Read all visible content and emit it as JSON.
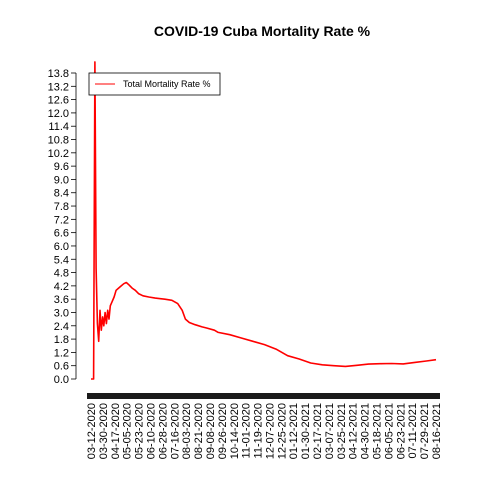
{
  "chart_data": {
    "type": "line",
    "title": "COVID-19 Cuba Mortality Rate %",
    "xlabel": "",
    "ylabel": "",
    "legend": {
      "placement": "top-left"
    },
    "grid": false,
    "y_ticks": [
      "0.0",
      "0.6",
      "1.2",
      "1.8",
      "2.4",
      "3.0",
      "3.6",
      "4.2",
      "4.8",
      "5.4",
      "6.0",
      "6.6",
      "7.2",
      "7.8",
      "8.4",
      "9.0",
      "9.6",
      "10.2",
      "10.8",
      "11.4",
      "12.0",
      "12.6",
      "13.2",
      "13.8"
    ],
    "ylim": [
      0.0,
      13.8
    ],
    "x_tick_labels": [
      "03-12-2020",
      "03-30-2020",
      "04-17-2020",
      "05-05-2020",
      "05-23-2020",
      "06-10-2020",
      "06-28-2020",
      "07-16-2020",
      "08-03-2020",
      "08-21-2020",
      "09-08-2020",
      "09-26-2020",
      "10-14-2020",
      "11-01-2020",
      "11-19-2020",
      "12-07-2020",
      "12-25-2020",
      "01-12-2021",
      "01-30-2021",
      "02-17-2021",
      "03-07-2021",
      "03-25-2021",
      "04-12-2021",
      "04-30-2021",
      "05-18-2021",
      "06-05-2021",
      "06-23-2021",
      "07-11-2021",
      "07-29-2021",
      "08-16-2021"
    ],
    "series": [
      {
        "name": "Total Mortality Rate %",
        "color": "#ff0000",
        "points": [
          [
            "03-12-2020",
            0.0
          ],
          [
            "03-16-2020",
            0.0
          ],
          [
            "03-18-2020",
            14.3
          ],
          [
            "03-20-2020",
            5.0
          ],
          [
            "03-22-2020",
            2.5
          ],
          [
            "03-24-2020",
            1.7
          ],
          [
            "03-26-2020",
            3.1
          ],
          [
            "03-28-2020",
            2.2
          ],
          [
            "03-30-2020",
            2.8
          ],
          [
            "04-01-2020",
            2.4
          ],
          [
            "04-03-2020",
            3.0
          ],
          [
            "04-05-2020",
            2.5
          ],
          [
            "04-07-2020",
            3.1
          ],
          [
            "04-09-2020",
            2.7
          ],
          [
            "04-11-2020",
            3.3
          ],
          [
            "04-14-2020",
            3.5
          ],
          [
            "04-17-2020",
            3.7
          ],
          [
            "04-20-2020",
            4.0
          ],
          [
            "04-24-2020",
            4.1
          ],
          [
            "04-28-2020",
            4.2
          ],
          [
            "05-02-2020",
            4.3
          ],
          [
            "05-06-2020",
            4.35
          ],
          [
            "05-10-2020",
            4.25
          ],
          [
            "05-15-2020",
            4.1
          ],
          [
            "05-20-2020",
            4.0
          ],
          [
            "05-25-2020",
            3.85
          ],
          [
            "06-01-2020",
            3.75
          ],
          [
            "06-10-2020",
            3.7
          ],
          [
            "06-20-2020",
            3.65
          ],
          [
            "06-28-2020",
            3.62
          ],
          [
            "07-05-2020",
            3.6
          ],
          [
            "07-16-2020",
            3.55
          ],
          [
            "07-25-2020",
            3.4
          ],
          [
            "08-01-2020",
            3.1
          ],
          [
            "08-06-2020",
            2.7
          ],
          [
            "08-12-2020",
            2.55
          ],
          [
            "08-21-2020",
            2.45
          ],
          [
            "09-01-2020",
            2.35
          ],
          [
            "09-08-2020",
            2.3
          ],
          [
            "09-20-2020",
            2.2
          ],
          [
            "09-26-2020",
            2.1
          ],
          [
            "10-14-2020",
            2.0
          ],
          [
            "11-01-2020",
            1.85
          ],
          [
            "11-19-2020",
            1.7
          ],
          [
            "12-07-2020",
            1.55
          ],
          [
            "12-25-2020",
            1.35
          ],
          [
            "01-12-2021",
            1.05
          ],
          [
            "01-30-2021",
            0.9
          ],
          [
            "02-17-2021",
            0.72
          ],
          [
            "03-07-2021",
            0.64
          ],
          [
            "03-25-2021",
            0.6
          ],
          [
            "04-12-2021",
            0.57
          ],
          [
            "04-30-2021",
            0.62
          ],
          [
            "05-18-2021",
            0.67
          ],
          [
            "06-05-2021",
            0.69
          ],
          [
            "06-23-2021",
            0.7
          ],
          [
            "07-11-2021",
            0.68
          ],
          [
            "07-29-2021",
            0.75
          ],
          [
            "08-16-2021",
            0.81
          ],
          [
            "08-31-2021",
            0.87
          ]
        ]
      }
    ]
  }
}
